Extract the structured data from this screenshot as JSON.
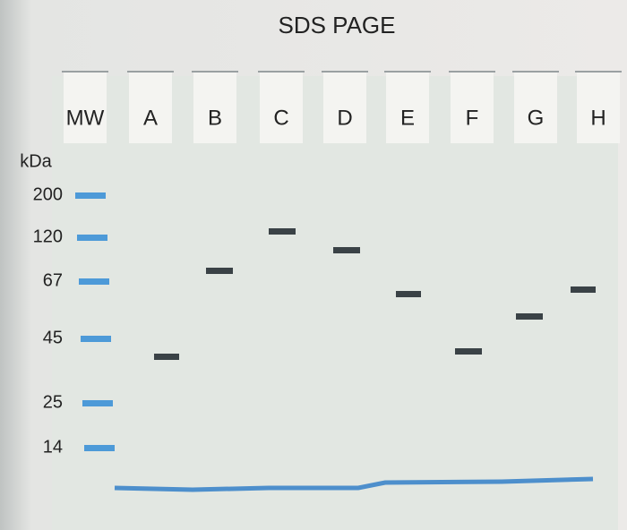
{
  "title": "SDS PAGE",
  "unit": "kDa",
  "lanes": [
    "MW",
    "A",
    "B",
    "C",
    "D",
    "E",
    "F",
    "G",
    "H"
  ],
  "markers": [
    "200",
    "120",
    "67",
    "45",
    "25",
    "14"
  ]
}
